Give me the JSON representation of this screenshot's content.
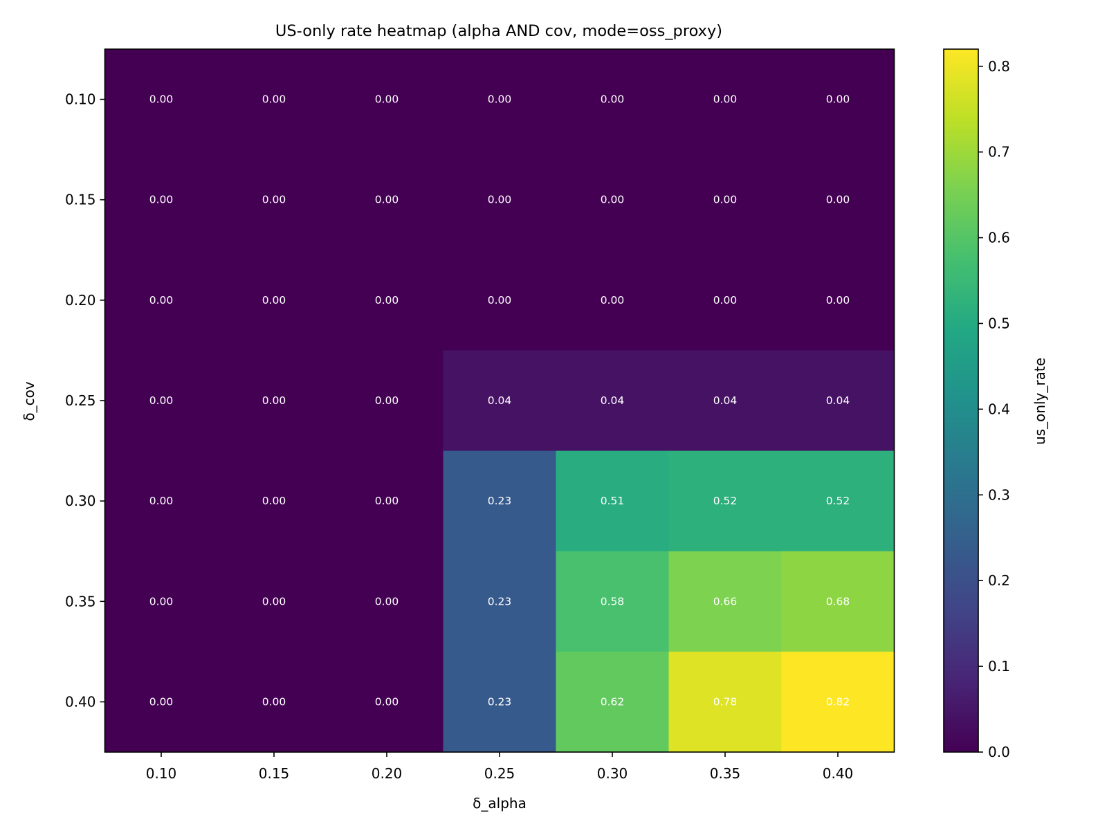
{
  "chart_data": {
    "type": "heatmap",
    "title": "US-only rate heatmap (alpha AND cov, mode=oss_proxy)",
    "xlabel": "δ_alpha",
    "ylabel": "δ_cov",
    "x_categories": [
      "0.10",
      "0.15",
      "0.20",
      "0.25",
      "0.30",
      "0.35",
      "0.40"
    ],
    "y_categories": [
      "0.10",
      "0.15",
      "0.20",
      "0.25",
      "0.30",
      "0.35",
      "0.40"
    ],
    "values": [
      [
        0.0,
        0.0,
        0.0,
        0.0,
        0.0,
        0.0,
        0.0
      ],
      [
        0.0,
        0.0,
        0.0,
        0.0,
        0.0,
        0.0,
        0.0
      ],
      [
        0.0,
        0.0,
        0.0,
        0.0,
        0.0,
        0.0,
        0.0
      ],
      [
        0.0,
        0.0,
        0.0,
        0.04,
        0.04,
        0.04,
        0.04
      ],
      [
        0.0,
        0.0,
        0.0,
        0.23,
        0.51,
        0.52,
        0.52
      ],
      [
        0.0,
        0.0,
        0.0,
        0.23,
        0.58,
        0.66,
        0.68
      ],
      [
        0.0,
        0.0,
        0.0,
        0.23,
        0.62,
        0.78,
        0.82
      ]
    ],
    "cell_labels": [
      [
        "0.00",
        "0.00",
        "0.00",
        "0.00",
        "0.00",
        "0.00",
        "0.00"
      ],
      [
        "0.00",
        "0.00",
        "0.00",
        "0.00",
        "0.00",
        "0.00",
        "0.00"
      ],
      [
        "0.00",
        "0.00",
        "0.00",
        "0.00",
        "0.00",
        "0.00",
        "0.00"
      ],
      [
        "0.00",
        "0.00",
        "0.00",
        "0.04",
        "0.04",
        "0.04",
        "0.04"
      ],
      [
        "0.00",
        "0.00",
        "0.00",
        "0.23",
        "0.51",
        "0.52",
        "0.52"
      ],
      [
        "0.00",
        "0.00",
        "0.00",
        "0.23",
        "0.58",
        "0.66",
        "0.68"
      ],
      [
        "0.00",
        "0.00",
        "0.00",
        "0.23",
        "0.62",
        "0.78",
        "0.82"
      ]
    ],
    "colorbar": {
      "label": "us_only_rate",
      "range": [
        0,
        0.82
      ],
      "ticks": [
        0.0,
        0.1,
        0.2,
        0.3,
        0.4,
        0.5,
        0.6,
        0.7,
        0.8
      ],
      "tick_labels": [
        "0.0",
        "0.1",
        "0.2",
        "0.3",
        "0.4",
        "0.5",
        "0.6",
        "0.7",
        "0.8"
      ],
      "colormap": "viridis"
    },
    "cell_text_color": "#ffffff",
    "grid": false
  }
}
